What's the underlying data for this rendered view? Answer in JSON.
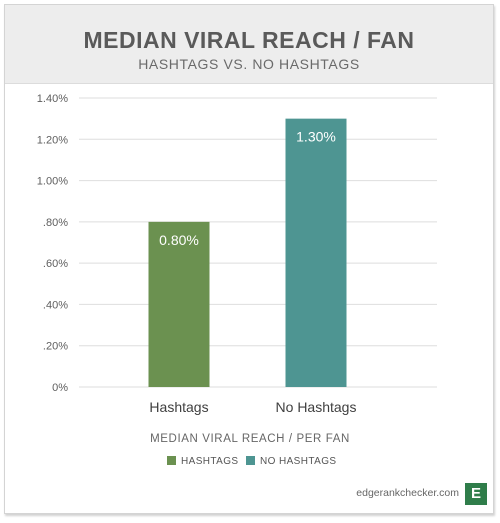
{
  "header": {
    "title": "MEDIAN VIRAL REACH / FAN",
    "subtitle": "HASHTAGS VS. NO HASHTAGS"
  },
  "chart_data": {
    "type": "bar",
    "title": "MEDIAN VIRAL REACH / FAN",
    "subtitle": "HASHTAGS VS. NO HASHTAGS",
    "xlabel": "MEDIAN VIRAL REACH / PER FAN",
    "ylabel": "",
    "categories": [
      "Hashtags",
      "No Hashtags"
    ],
    "values": [
      0.8,
      1.3
    ],
    "value_labels": [
      "0.80%",
      "1.30%"
    ],
    "series": [
      {
        "name": "HASHTAGS",
        "color": "#6b9150"
      },
      {
        "name": "NO HASHTAGS",
        "color": "#4e9592"
      }
    ],
    "ylim": [
      0,
      1.4
    ],
    "yticks": [
      0,
      0.2,
      0.4,
      0.6,
      0.8,
      1.0,
      1.2,
      1.4
    ],
    "ytick_labels": [
      "0%",
      ".20%",
      ".40%",
      ".60%",
      ".80%",
      "1.00%",
      "1.20%",
      "1.40%"
    ],
    "grid": true,
    "legend_position": "bottom-center"
  },
  "legend": {
    "title": "MEDIAN VIRAL REACH / PER FAN",
    "items": [
      {
        "label": "HASHTAGS",
        "color": "#6b9150"
      },
      {
        "label": "NO HASHTAGS",
        "color": "#4e9592"
      }
    ]
  },
  "footer": {
    "brand": "edgerankchecker.com",
    "logo_letter": "E"
  }
}
